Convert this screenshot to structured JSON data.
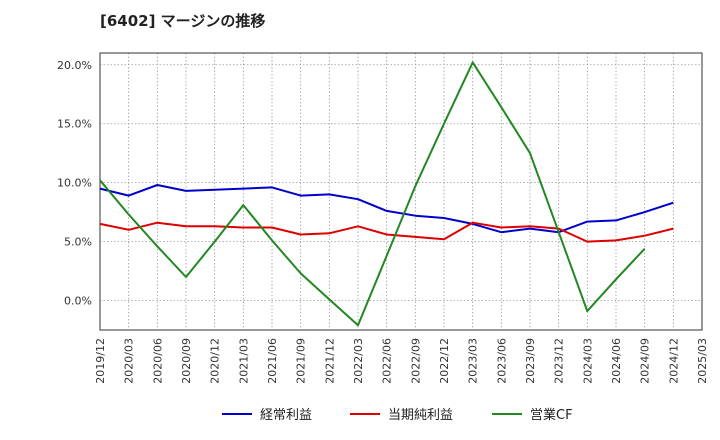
{
  "chart_data": {
    "type": "line",
    "title": "[6402]  マージンの推移",
    "xlabel": "",
    "ylabel": "",
    "ylim": [
      -2.5,
      21.0
    ],
    "yticks": [
      0,
      5,
      10,
      15,
      20
    ],
    "ytick_labels": [
      "0.0%",
      "5.0%",
      "10.0%",
      "15.0%",
      "20.0%"
    ],
    "x": [
      "2019/12",
      "2020/03",
      "2020/06",
      "2020/09",
      "2020/12",
      "2021/03",
      "2021/06",
      "2021/09",
      "2021/12",
      "2022/03",
      "2022/06",
      "2022/09",
      "2022/12",
      "2023/03",
      "2023/06",
      "2023/09",
      "2023/12",
      "2024/03",
      "2024/06",
      "2024/09",
      "2024/12",
      "2025/03"
    ],
    "grid": true,
    "legend_position": "bottom",
    "series": [
      {
        "name": "経常利益",
        "color": "#0000cc",
        "values": [
          9.5,
          8.9,
          9.8,
          9.3,
          9.4,
          9.5,
          9.6,
          8.9,
          9.0,
          8.6,
          7.6,
          7.2,
          7.0,
          6.5,
          5.8,
          6.1,
          5.8,
          6.7,
          6.8,
          7.5,
          8.3,
          null
        ]
      },
      {
        "name": "当期純利益",
        "color": "#dd0000",
        "values": [
          6.5,
          6.0,
          6.6,
          6.3,
          6.3,
          6.2,
          6.2,
          5.6,
          5.7,
          6.3,
          5.6,
          5.4,
          5.2,
          6.6,
          6.2,
          6.3,
          6.1,
          5.0,
          5.1,
          5.5,
          6.1,
          null
        ]
      },
      {
        "name": "営業CF",
        "color": "#228822",
        "values": [
          10.2,
          7.3,
          4.6,
          2.0,
          5.0,
          8.1,
          5.1,
          2.3,
          0.1,
          -2.1,
          3.8,
          9.7,
          15.0,
          20.2,
          16.4,
          12.5,
          5.8,
          -0.9,
          1.8,
          4.4,
          null,
          null
        ]
      }
    ]
  }
}
